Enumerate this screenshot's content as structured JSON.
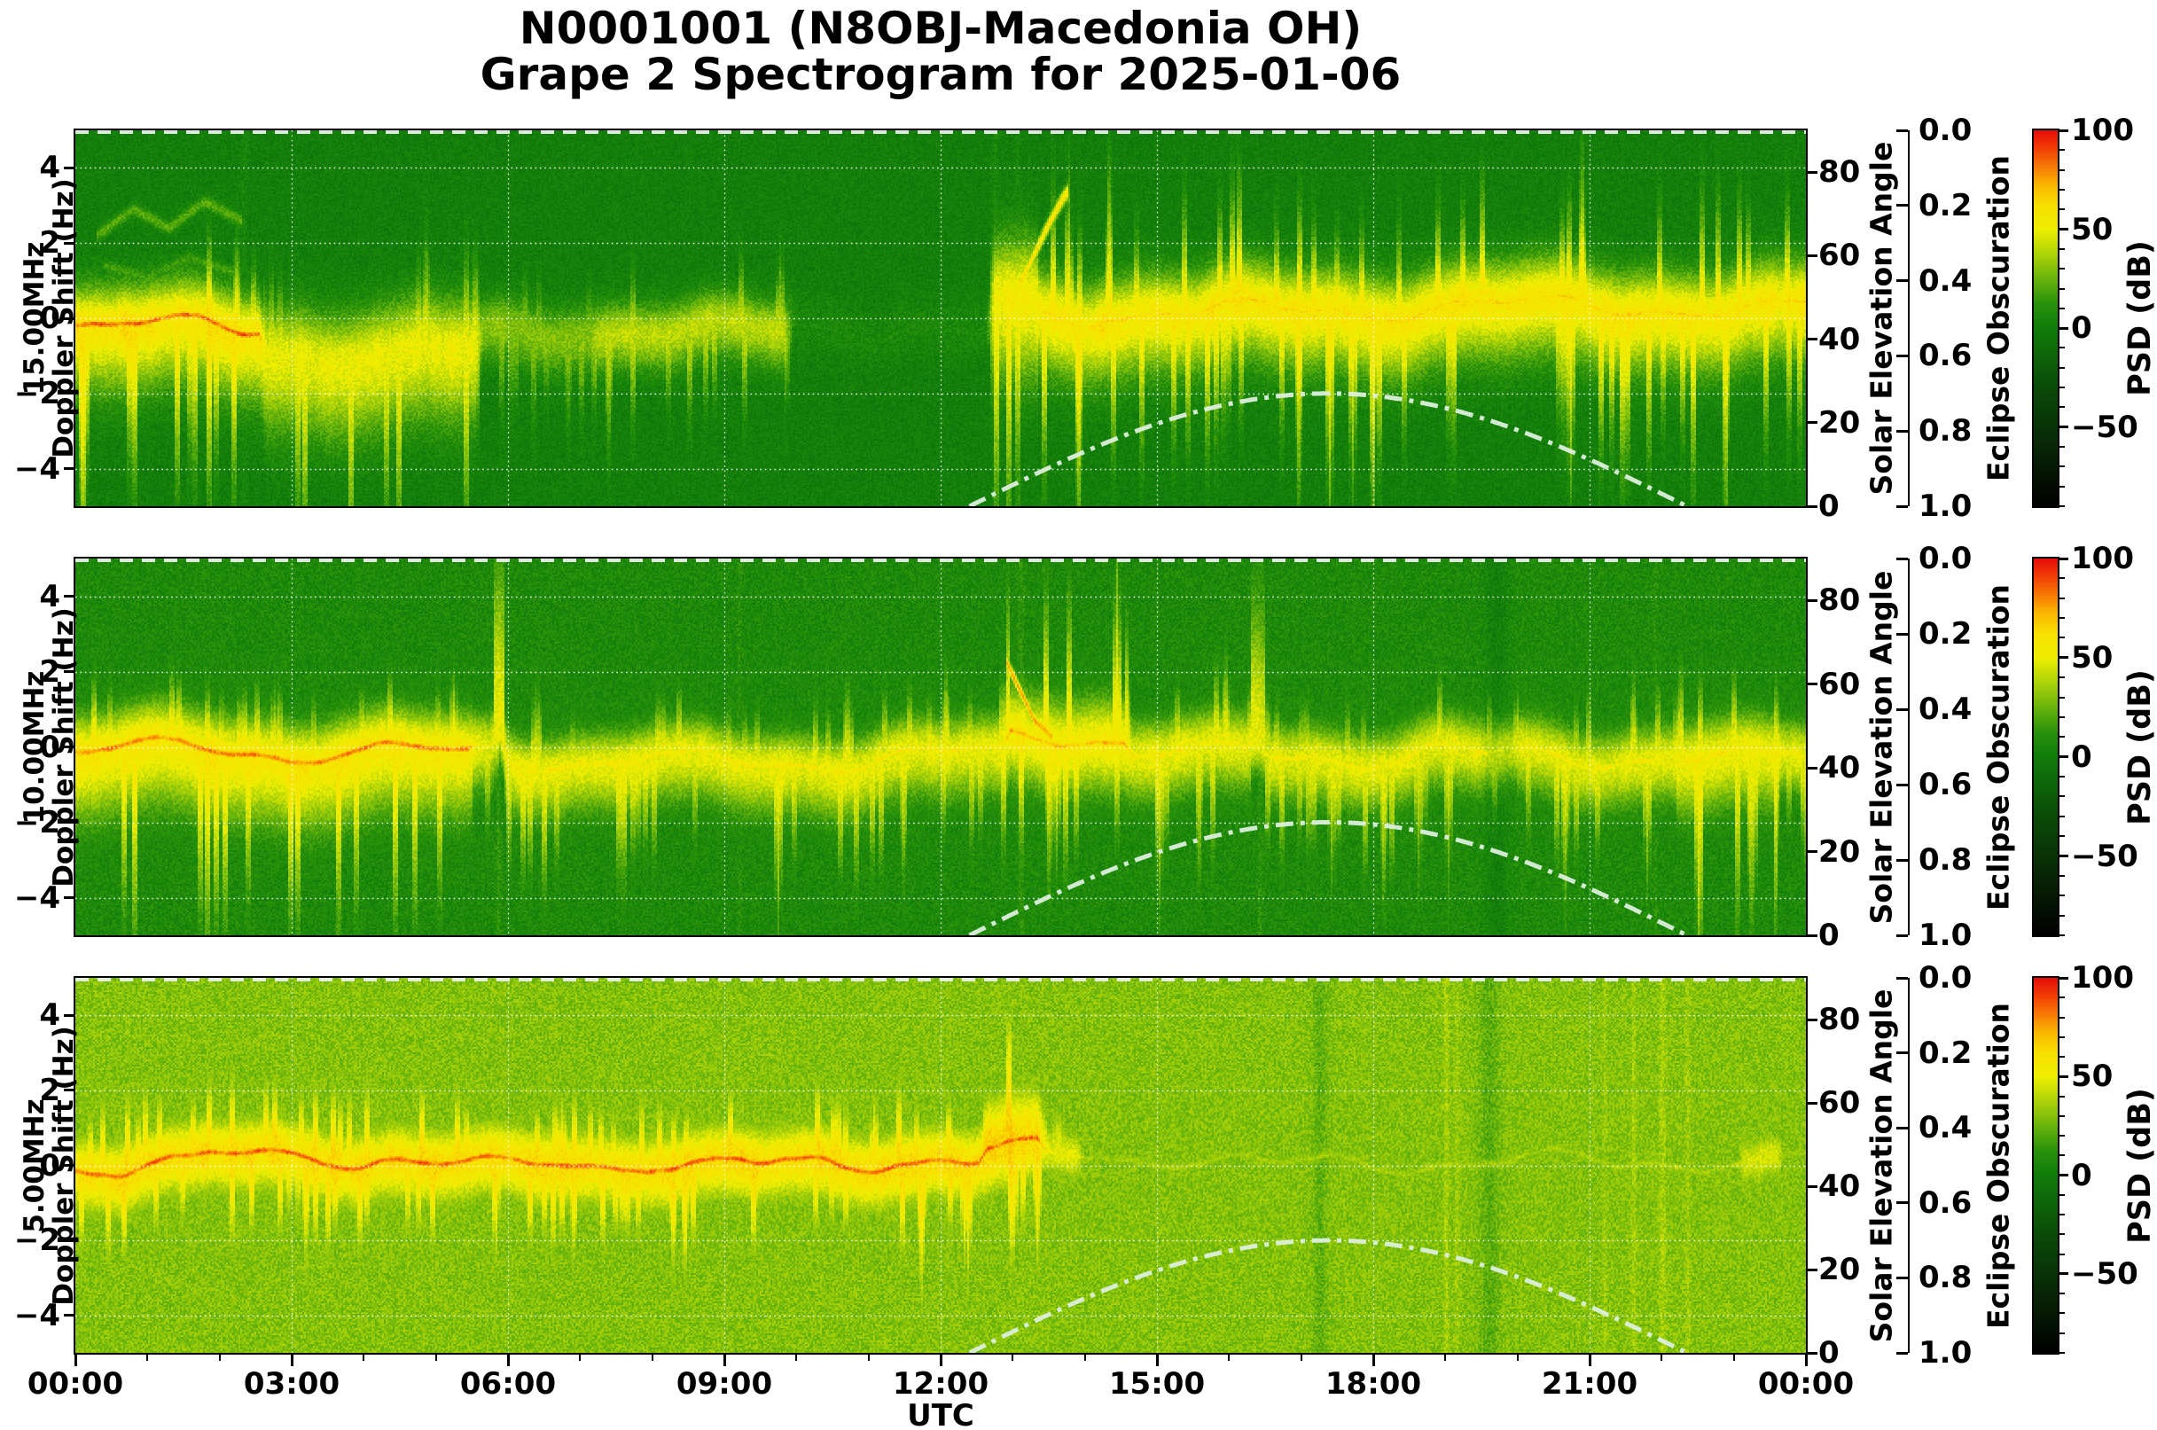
{
  "title": {
    "line1": "N0001001 (N8OBJ-Macedonia OH)",
    "line2": "Grape 2 Spectrogram for 2025-01-06"
  },
  "station": "N0001001",
  "receiver": "N8OBJ-Macedonia OH",
  "date": "2025-01-06",
  "axes": {
    "x": {
      "label": "UTC",
      "tick_labels": [
        "00:00",
        "03:00",
        "06:00",
        "09:00",
        "12:00",
        "15:00",
        "18:00",
        "21:00",
        "00:00"
      ],
      "tick_hours": [
        0,
        3,
        6,
        9,
        12,
        15,
        18,
        21,
        24
      ],
      "minor_tick_every_hours": 1,
      "range_hours": [
        0,
        24
      ]
    },
    "doppler": {
      "label_line2": "Doppler Shift (Hz)",
      "ticks": [
        4,
        2,
        0,
        -2,
        -4
      ],
      "range": [
        -5,
        5
      ]
    },
    "solar": {
      "label": "Solar Elevation Angle",
      "ticks": [
        80,
        60,
        40,
        20,
        0
      ],
      "range": [
        0,
        90
      ]
    },
    "eclipse": {
      "label": "Eclipse Obscuration",
      "ticks": [
        "0.0",
        "0.2",
        "0.4",
        "0.6",
        "0.8",
        "1.0"
      ],
      "range": [
        0,
        1
      ]
    },
    "colorbar": {
      "label": "PSD (dB)",
      "major_ticks": [
        100,
        50,
        0,
        -50
      ],
      "minor_tick_step": 10,
      "range": [
        -90,
        100
      ]
    }
  },
  "chart_data": {
    "type": "heatmap",
    "subtype": "doppler-spectrogram",
    "x_unit": "hours UTC",
    "y_unit": "Hz doppler shift",
    "grid": true,
    "gridline_style": "white dotted at each 2 Hz and each 3 h",
    "colormap_psd_db": [
      {
        "v": -90,
        "c": "#000000"
      },
      {
        "v": -60,
        "c": "#082606"
      },
      {
        "v": -30,
        "c": "#0a4b08"
      },
      {
        "v": 0,
        "c": "#107c0a"
      },
      {
        "v": 12,
        "c": "#28910a"
      },
      {
        "v": 25,
        "c": "#69b40c"
      },
      {
        "v": 38,
        "c": "#afd408"
      },
      {
        "v": 50,
        "c": "#eeee00"
      },
      {
        "v": 62,
        "c": "#f8e100"
      },
      {
        "v": 72,
        "c": "#fab900"
      },
      {
        "v": 82,
        "c": "#f77805"
      },
      {
        "v": 92,
        "c": "#f03705"
      },
      {
        "v": 100,
        "c": "#e60f0a"
      }
    ],
    "solar_elevation_curve": {
      "style": "dash-dot light line",
      "color": "#dcefdc",
      "sunrise_utc": 12.4,
      "sunset_utc": 22.35,
      "peak_elevation_deg": 27.0,
      "note": "same curve drawn on all three panels; only daytime portion above 0 deg visible"
    },
    "eclipse_obscuration_series": {
      "style": "dashed light line along top of each panel",
      "color": "#e9f1e9",
      "constant_value": 0.0
    },
    "panels": [
      {
        "frequency_label": "15.00MHz",
        "frequency_mhz": 15.0,
        "seed": 101,
        "background_db": -2,
        "noise_db": 6.5,
        "description": "Dark green background. Doppler trace near 0 Hz with red-orange core 00:00-02:30, diffuse descending clouds to -3 Hz 02:30-05:30, weak activity 05:30-10:00, nearly quiet 10:00-12:40, strong spiky yellow band from ~12:45 to 24:00 with rising hook to +3.4 Hz near 13:40.",
        "segments": [
          {
            "t0": 0,
            "t1": 2.6,
            "core_db": 88,
            "halo_db": 60,
            "width_hz": 0.7,
            "center_hz": -0.1,
            "down_bias": 1.7,
            "spike_up": 0.5,
            "spike_down": 1.6,
            "red_fraction": 0.75
          },
          {
            "t0": 2.6,
            "t1": 5.6,
            "core_db": 40,
            "halo_db": 50,
            "width_hz": 0.9,
            "center_hz": -0.8,
            "down_bias": 1.5,
            "spike_up": 0.4,
            "spike_down": 1.4,
            "red_fraction": 0.05
          },
          {
            "t0": 5.6,
            "t1": 7.2,
            "core_db": 26,
            "halo_db": 30,
            "width_hz": 0.55,
            "center_hz": -0.3,
            "down_bias": 1.2,
            "spike_up": 0.5,
            "spike_down": 1.0,
            "red_fraction": 0
          },
          {
            "t0": 7.2,
            "t1": 9.9,
            "core_db": 40,
            "halo_db": 40,
            "width_hz": 0.55,
            "center_hz": -0.4,
            "down_bias": 1.2,
            "spike_up": 0.6,
            "spike_down": 1.2,
            "red_fraction": 0.04
          },
          {
            "t0": 9.9,
            "t1": 12.7,
            "core_db": 8,
            "halo_db": 6,
            "width_hz": 0.5,
            "center_hz": -0.2,
            "down_bias": 1.0,
            "spike_up": 0.3,
            "spike_down": 0.3,
            "red_fraction": 0
          },
          {
            "t0": 12.7,
            "t1": 13.35,
            "core_db": 58,
            "halo_db": 55,
            "width_hz": 1.1,
            "center_hz": 0.5,
            "down_bias": 1.3,
            "spike_up": 1.6,
            "spike_down": 1.5,
            "red_fraction": 0.3
          },
          {
            "t0": 13.35,
            "t1": 24,
            "core_db": 66,
            "halo_db": 58,
            "width_hz": 0.75,
            "center_hz": 0.25,
            "down_bias": 1.4,
            "spike_up": 0.9,
            "spike_down": 1.3,
            "red_fraction": 0.25
          }
        ],
        "traces": [
          {
            "v_db": 22,
            "sigma_hz": 0.12,
            "points": [
              [
                0.3,
                2.2
              ],
              [
                0.8,
                2.9
              ],
              [
                1.3,
                2.4
              ],
              [
                1.8,
                3.1
              ],
              [
                2.3,
                2.6
              ]
            ]
          },
          {
            "v_db": 17,
            "sigma_hz": 0.12,
            "points": [
              [
                0.4,
                1.4
              ],
              [
                1.0,
                1.1
              ],
              [
                1.6,
                1.6
              ],
              [
                2.2,
                1.2
              ]
            ]
          },
          {
            "v_db": 27,
            "sigma_hz": 0.18,
            "points": [
              [
                2.7,
                -0.8
              ],
              [
                3.2,
                -2.2
              ],
              [
                3.8,
                -2.9
              ],
              [
                4.4,
                -2.3
              ],
              [
                5.0,
                -1.1
              ]
            ]
          },
          {
            "v_db": 23,
            "sigma_hz": 0.18,
            "points": [
              [
                3.0,
                -0.6
              ],
              [
                3.5,
                -1.4
              ],
              [
                4.0,
                -1.9
              ],
              [
                4.5,
                -1.3
              ],
              [
                4.9,
                -0.7
              ]
            ]
          },
          {
            "v_db": 62,
            "sigma_hz": 0.15,
            "points": [
              [
                12.88,
                -0.5
              ],
              [
                13.0,
                0.4
              ],
              [
                13.1,
                0.9
              ],
              [
                13.3,
                1.7
              ],
              [
                13.5,
                2.5
              ],
              [
                13.7,
                3.2
              ],
              [
                13.78,
                3.4
              ]
            ]
          }
        ],
        "columns": [
          {
            "t": 2.33,
            "dv_db": 6,
            "w_min": 3
          },
          {
            "t": 12.75,
            "dv_db": 8,
            "w_min": 3
          },
          {
            "t": 13.05,
            "dv_db": 7,
            "w_min": 2
          }
        ]
      },
      {
        "frequency_label": "10.00MHz",
        "frequency_mhz": 10.0,
        "seed": 202,
        "background_db": 7,
        "noise_db": 7,
        "description": "Medium green background. Continuous band at 0 Hz all day; red-orange core 00:00-05:30 with diffuse cloud below; tall narrow spike near 05:50; burst of upward spikes to +3 Hz 13:00-14:30 with orange descending trace; thin tall spike ~16:20; darker vertical band ~19:40; down-spikes 22:15-23:35.",
        "segments": [
          {
            "t0": 0,
            "t1": 5.5,
            "core_db": 84,
            "halo_db": 58,
            "width_hz": 0.7,
            "center_hz": -0.1,
            "down_bias": 1.8,
            "spike_up": 0.4,
            "spike_down": 1.4,
            "red_fraction": 0.7
          },
          {
            "t0": 5.5,
            "t1": 5.8,
            "core_db": 55,
            "halo_db": 48,
            "width_hz": 0.6,
            "center_hz": 0,
            "down_bias": 1.4,
            "spike_up": 0.8,
            "spike_down": 1.0,
            "red_fraction": 0.15
          },
          {
            "t0": 5.8,
            "t1": 5.95,
            "core_db": 55,
            "halo_db": 52,
            "width_hz": 0.5,
            "width_up_hz": 3.2,
            "center_hz": 0.5,
            "down_bias": 1.0,
            "spike_up": 0,
            "spike_down": 0.8,
            "red_fraction": 0.1
          },
          {
            "t0": 5.95,
            "t1": 12.9,
            "core_db": 60,
            "halo_db": 50,
            "width_hz": 0.6,
            "center_hz": -0.15,
            "down_bias": 1.5,
            "spike_up": 0.5,
            "spike_down": 1.1,
            "red_fraction": 0.2
          },
          {
            "t0": 12.9,
            "t1": 14.6,
            "core_db": 74,
            "halo_db": 56,
            "width_hz": 0.85,
            "center_hz": 0.35,
            "down_bias": 1.1,
            "spike_up": 1.5,
            "spike_down": 1.0,
            "red_fraction": 0.45
          },
          {
            "t0": 14.6,
            "t1": 16.3,
            "core_db": 60,
            "halo_db": 50,
            "width_hz": 0.65,
            "center_hz": 0,
            "down_bias": 1.3,
            "spike_up": 0.6,
            "spike_down": 1.0,
            "red_fraction": 0.15
          },
          {
            "t0": 16.3,
            "t1": 16.5,
            "core_db": 55,
            "halo_db": 50,
            "width_hz": 0.55,
            "width_up_hz": 2.6,
            "center_hz": 0.2,
            "down_bias": 1.0,
            "spike_up": 0,
            "spike_down": 0.8,
            "red_fraction": 0.1
          },
          {
            "t0": 16.5,
            "t1": 19.55,
            "core_db": 58,
            "halo_db": 48,
            "width_hz": 0.62,
            "center_hz": -0.05,
            "down_bias": 1.3,
            "spike_up": 0.5,
            "spike_down": 1.0,
            "red_fraction": 0.15
          },
          {
            "t0": 19.55,
            "t1": 20.0,
            "core_db": 46,
            "halo_db": 42,
            "width_hz": 0.55,
            "center_hz": -0.05,
            "down_bias": 1.2,
            "spike_up": 0.4,
            "spike_down": 0.9,
            "red_fraction": 0.05
          },
          {
            "t0": 20.0,
            "t1": 22.2,
            "core_db": 58,
            "halo_db": 48,
            "width_hz": 0.62,
            "center_hz": -0.05,
            "down_bias": 1.3,
            "spike_up": 0.6,
            "spike_down": 1.1,
            "red_fraction": 0.25
          },
          {
            "t0": 22.2,
            "t1": 23.6,
            "core_db": 62,
            "halo_db": 52,
            "width_hz": 0.7,
            "center_hz": -0.15,
            "down_bias": 1.5,
            "spike_up": 0.7,
            "spike_down": 1.9,
            "red_fraction": 0.3
          },
          {
            "t0": 23.6,
            "t1": 24,
            "core_db": 58,
            "halo_db": 48,
            "width_hz": 0.6,
            "center_hz": -0.1,
            "down_bias": 1.2,
            "spike_up": 0.5,
            "spike_down": 1.0,
            "red_fraction": 0.15
          }
        ],
        "traces": [
          {
            "v_db": 74,
            "sigma_hz": 0.13,
            "points": [
              [
                12.9,
                2.3
              ],
              [
                13.1,
                1.5
              ],
              [
                13.3,
                0.7
              ],
              [
                13.55,
                0.25
              ]
            ]
          }
        ],
        "columns": [
          {
            "t": 5.86,
            "dv_db": 6,
            "w_min": 2
          },
          {
            "t": 9.2,
            "dv_db": 4,
            "w_min": 2
          },
          {
            "t": 13.1,
            "dv_db": 5,
            "w_min": 3
          },
          {
            "t": 16.42,
            "dv_db": 5,
            "w_min": 2
          },
          {
            "t": 19.7,
            "dv_db": -9,
            "w_min": 8
          },
          {
            "t": 21.9,
            "dv_db": 4,
            "w_min": 2
          }
        ]
      },
      {
        "frequency_label": "5.00MHz",
        "frequency_mhz": 5.0,
        "seed": 303,
        "background_db": 30,
        "noise_db": 7.5,
        "description": "Light yellow-green background. Strong orange/red-cored band at 0 Hz from 00:00 to ~13:30 with yellow halo and spikes to ±2 Hz, surge to +3 Hz near 13:00; band collapses to a faint thin line after ~14:00; light vertical streaks 21:10-22:30, darker streaks ~17:15 and ~19:40; small yellow blob near 23:20.",
        "segments": [
          {
            "t0": 0,
            "t1": 12.6,
            "core_db": 88,
            "halo_db": 62,
            "width_hz": 0.8,
            "center_hz": -0.05,
            "down_bias": 1.15,
            "spike_up": 0.8,
            "spike_down": 1.1,
            "red_fraction": 0.55
          },
          {
            "t0": 12.6,
            "t1": 13.4,
            "core_db": 90,
            "halo_db": 66,
            "width_hz": 1.15,
            "center_hz": 0.3,
            "down_bias": 0.9,
            "spike_up": 1.2,
            "spike_down": 0.8,
            "red_fraction": 0.6
          },
          {
            "t0": 13.4,
            "t1": 13.95,
            "core_db": 58,
            "halo_db": 48,
            "width_hz": 0.6,
            "center_hz": 0,
            "down_bias": 1.0,
            "spike_up": 0.5,
            "spike_down": 0.7,
            "red_fraction": 0.1
          },
          {
            "t0": 13.95,
            "t1": 23.1,
            "core_db": 38,
            "halo_db": 30,
            "width_hz": 0.2,
            "center_hz": -0.05,
            "down_bias": 1.0,
            "spike_up": 0.15,
            "spike_down": 0.2,
            "red_fraction": 0
          },
          {
            "t0": 23.1,
            "t1": 23.65,
            "core_db": 50,
            "halo_db": 46,
            "width_hz": 0.55,
            "center_hz": -0.1,
            "down_bias": 1.0,
            "spike_up": 0.5,
            "spike_down": 0.7,
            "red_fraction": 0.05
          },
          {
            "t0": 23.65,
            "t1": 24,
            "core_db": 34,
            "halo_db": 28,
            "width_hz": 0.22,
            "center_hz": -0.05,
            "down_bias": 1.0,
            "spike_up": 0.2,
            "spike_down": 0.2,
            "red_fraction": 0
          }
        ],
        "traces": [],
        "columns": [
          {
            "t": 17.25,
            "dv_db": -7,
            "w_min": 6
          },
          {
            "t": 19.0,
            "dv_db": 7,
            "w_min": 2
          },
          {
            "t": 19.15,
            "dv_db": 5,
            "w_min": 2
          },
          {
            "t": 19.6,
            "dv_db": -8,
            "w_min": 8
          },
          {
            "t": 21.2,
            "dv_db": 4,
            "w_min": 2
          },
          {
            "t": 21.6,
            "dv_db": 6,
            "w_min": 2
          },
          {
            "t": 22.0,
            "dv_db": 6,
            "w_min": 3
          },
          {
            "t": 22.35,
            "dv_db": 5,
            "w_min": 2
          }
        ]
      }
    ]
  }
}
